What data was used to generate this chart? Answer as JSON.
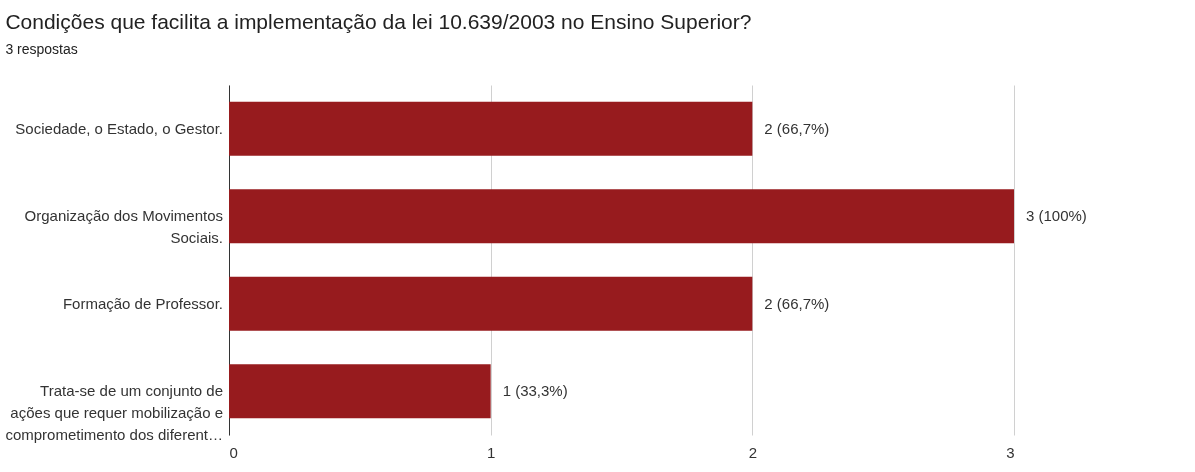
{
  "chart_data": {
    "type": "bar",
    "orientation": "horizontal",
    "title": "Condições que facilita a implementação da lei 10.639/2003 no Ensino Superior?",
    "subtitle": "3 respostas",
    "categories": [
      "Sociedade, o Estado, o Gestor.",
      "Organização dos Movimentos Sociais.",
      "Formação de Professor.",
      "Trata-se de um conjunto de ações que requer mobilização e comprometimento dos diferent…"
    ],
    "values": [
      2,
      3,
      2,
      1
    ],
    "color": "#971b1e",
    "value_labels": [
      "2 (66,7%)",
      "3 (100%)",
      "2 (66,7%)",
      "1 (33,3%)"
    ],
    "xlim": [
      0,
      3
    ],
    "xticks": [
      0,
      1,
      2,
      3
    ],
    "grid": "x"
  }
}
